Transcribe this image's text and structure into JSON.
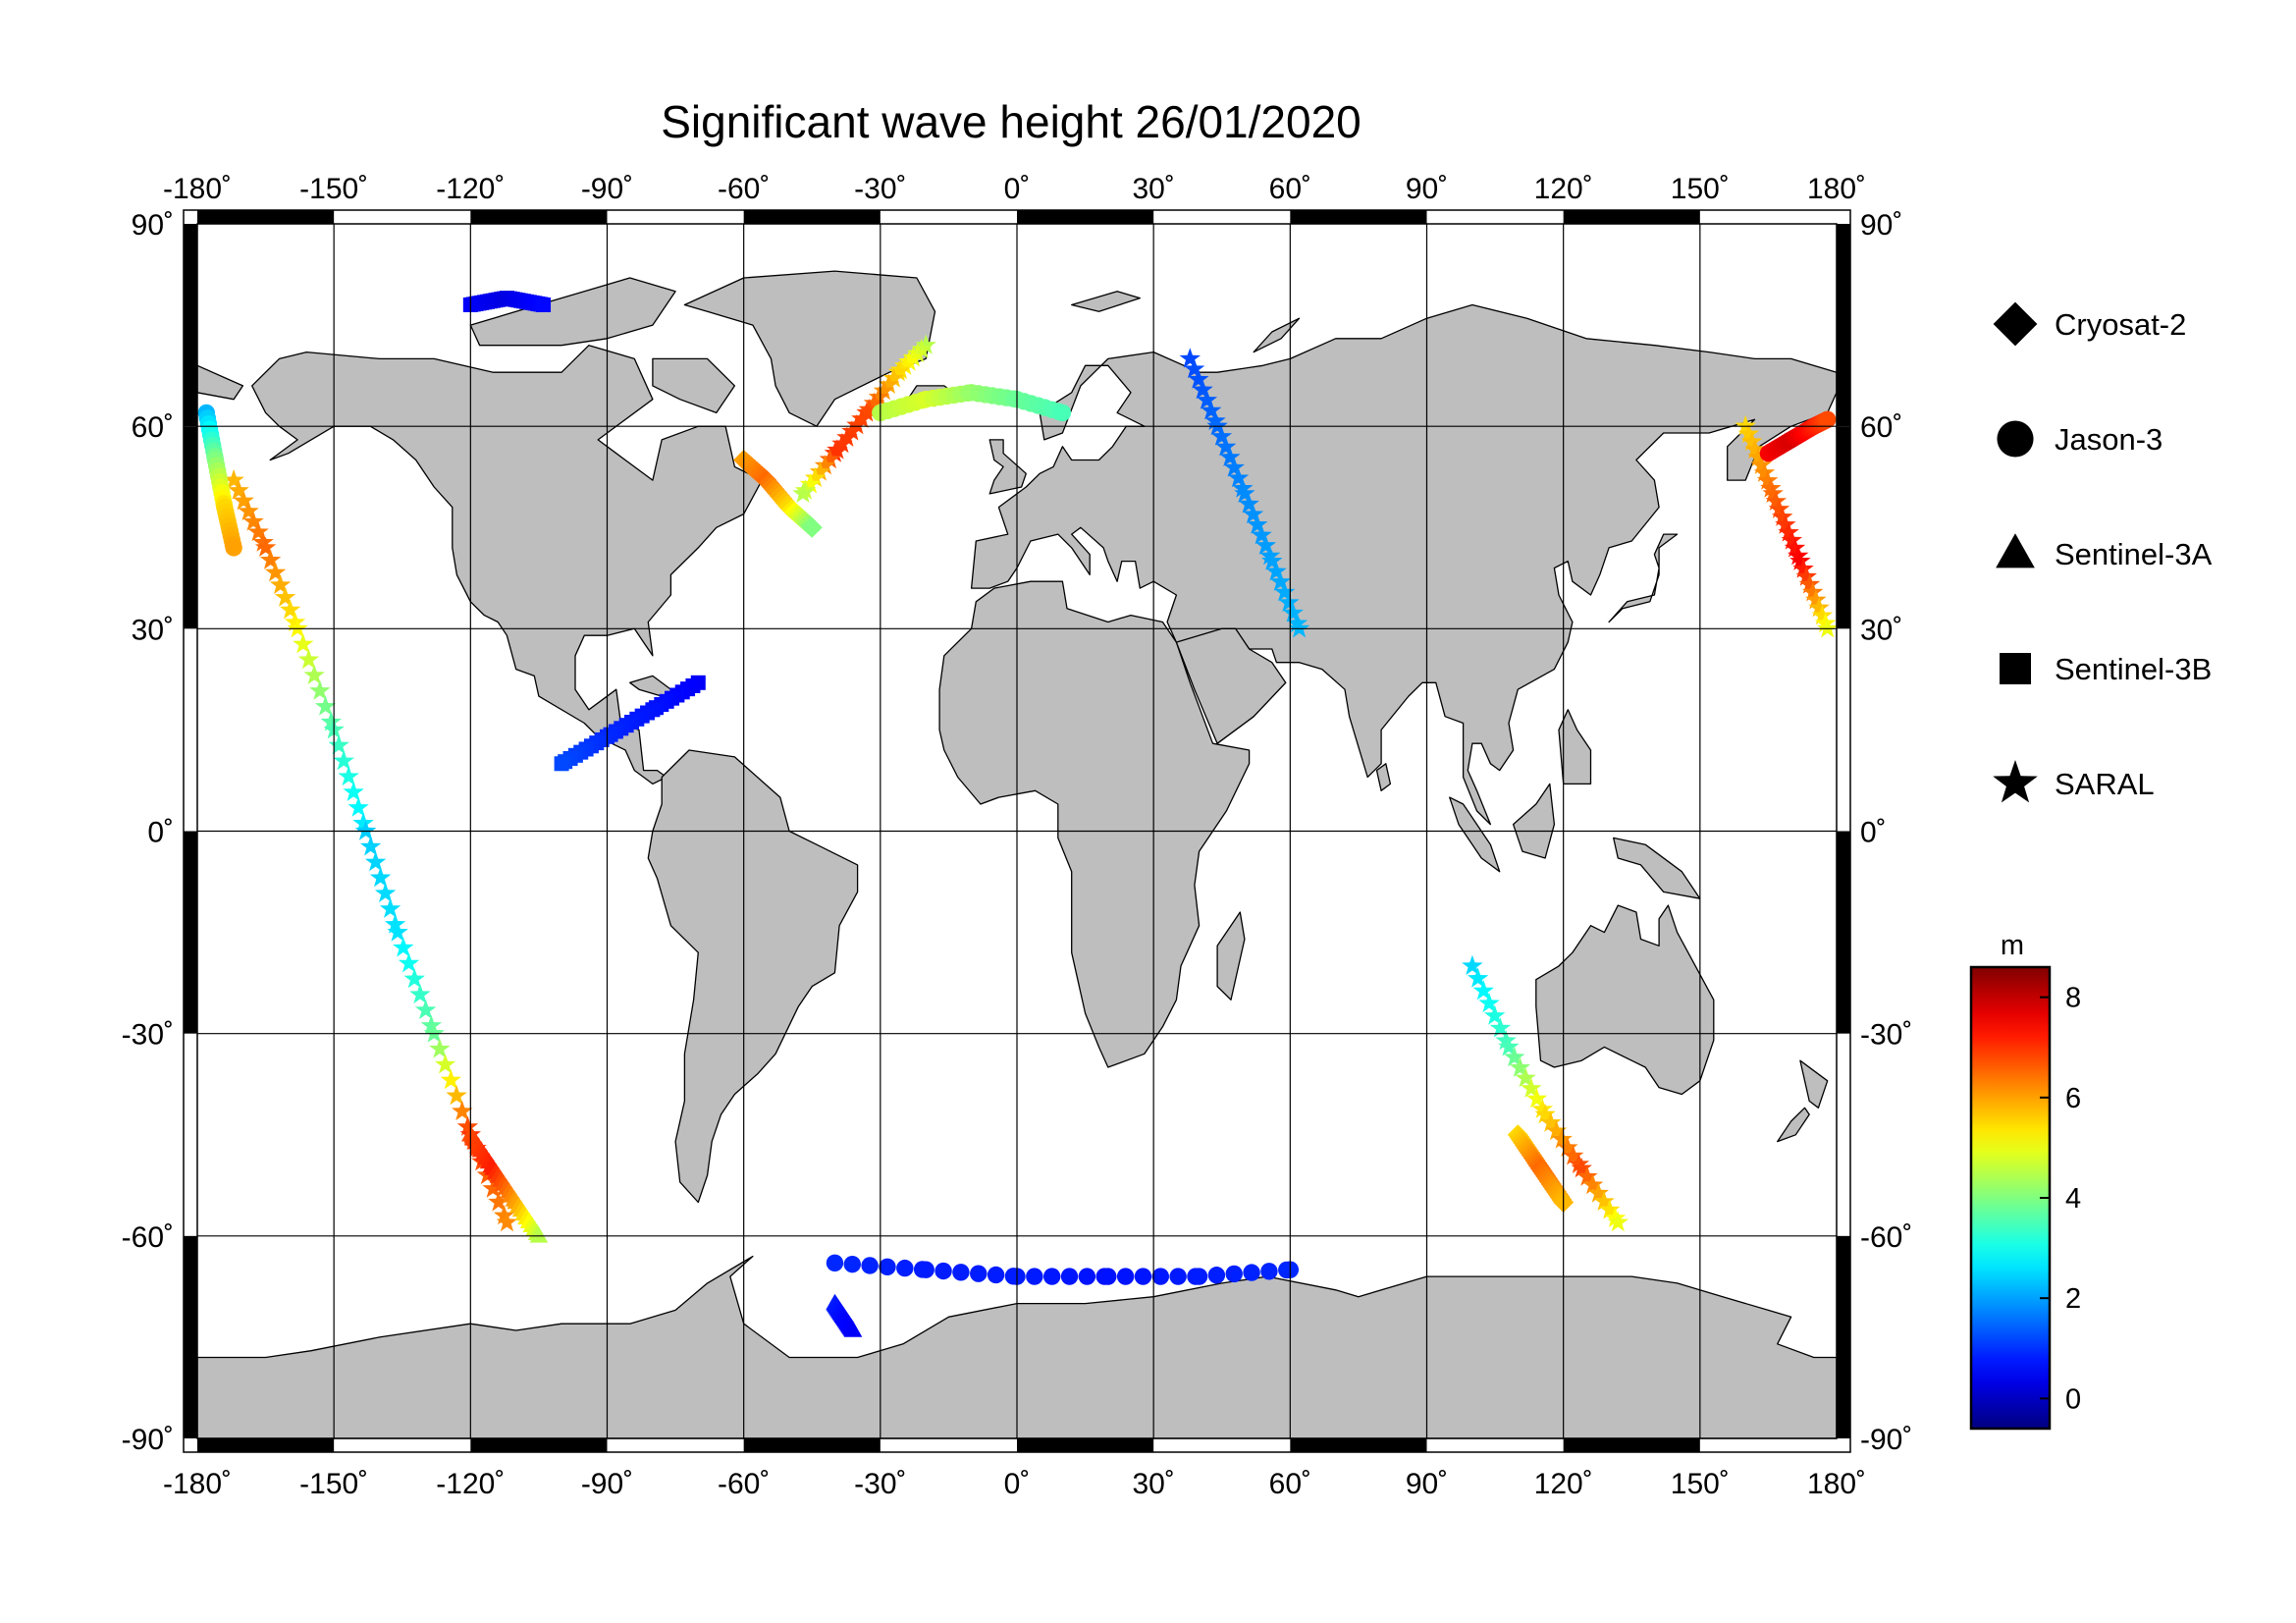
{
  "title": "Significant wave height 26/01/2020",
  "map": {
    "projection": "equirectangular",
    "lon_range": [
      -180,
      180
    ],
    "lat_range": [
      -90,
      90
    ],
    "gridlines": true,
    "lon_ticks": [
      "-180˚",
      "-150˚",
      "-120˚",
      "-90˚",
      "-60˚",
      "-30˚",
      "0˚",
      "30˚",
      "60˚",
      "90˚",
      "120˚",
      "150˚",
      "180˚"
    ],
    "lat_ticks": [
      "90˚",
      "60˚",
      "30˚",
      "0˚",
      "-30˚",
      "-60˚",
      "-90˚"
    ],
    "land_color": "#bebebe",
    "ocean_color": "#ffffff"
  },
  "legend": {
    "placement": "right",
    "items": [
      {
        "label": "Cryosat-2",
        "marker": "diamond"
      },
      {
        "label": "Jason-3",
        "marker": "circle"
      },
      {
        "label": "Sentinel-3A",
        "marker": "triangle"
      },
      {
        "label": "Sentinel-3B",
        "marker": "square"
      },
      {
        "label": "SARAL",
        "marker": "star"
      }
    ]
  },
  "colorbar": {
    "unit": "m",
    "range": [
      -0.6,
      8.6
    ],
    "tick_values": [
      0,
      2,
      4,
      6,
      8
    ],
    "tick_labels": [
      "0",
      "2",
      "4",
      "6",
      "8"
    ],
    "colormap": "jet"
  },
  "chart_data": {
    "type": "scatter",
    "title": "Significant wave height 26/01/2020",
    "x_axis": "longitude",
    "y_axis": "latitude",
    "xlim": [
      -180,
      180
    ],
    "ylim": [
      -90,
      90
    ],
    "color_variable": "significant wave height (m)",
    "series": [
      {
        "name": "SARAL",
        "marker": "star",
        "tracks": [
          {
            "lon": [
              -172,
              -165,
              -158,
              -150,
              -143
            ],
            "lat": [
              52,
              42,
              30,
              15,
              0
            ],
            "swh": [
              5.8,
              6.5,
              5.2,
              3.5,
              2.6
            ]
          },
          {
            "lon": [
              -143,
              -136,
              -128,
              -120,
              -112
            ],
            "lat": [
              0,
              -15,
              -30,
              -45,
              -58
            ],
            "swh": [
              2.4,
              2.6,
              3.8,
              7.0,
              6.2
            ]
          },
          {
            "lon": [
              -20,
              -26,
              -33,
              -40,
              -47
            ],
            "lat": [
              72,
              68,
              62,
              56,
              50
            ],
            "swh": [
              4.5,
              5.5,
              6.8,
              7.0,
              4.5
            ]
          },
          {
            "lon": [
              38,
              44,
              50,
              56,
              62
            ],
            "lat": [
              70,
              60,
              50,
              40,
              30
            ],
            "swh": [
              1.2,
              1.5,
              1.8,
              2.0,
              2.2
            ]
          },
          {
            "lon": [
              100,
              108,
              116,
              124,
              132
            ],
            "lat": [
              -20,
              -32,
              -42,
              -50,
              -58
            ],
            "swh": [
              2.5,
              3.5,
              5.5,
              6.8,
              5.0
            ]
          },
          {
            "lon": [
              160,
              166,
              172,
              178
            ],
            "lat": [
              60,
              50,
              40,
              30
            ],
            "swh": [
              5.5,
              6.5,
              7.5,
              5.0
            ]
          }
        ]
      },
      {
        "name": "Jason-3",
        "marker": "circle",
        "tracks": [
          {
            "lon": [
              -178,
              -176,
              -174,
              -172
            ],
            "lat": [
              62,
              55,
              48,
              42
            ],
            "swh": [
              2.2,
              4.0,
              5.5,
              6.0
            ]
          },
          {
            "lon": [
              -30,
              -20,
              -10,
              0,
              10
            ],
            "lat": [
              62,
              64,
              65,
              64,
              62
            ],
            "swh": [
              4.5,
              4.8,
              4.2,
              3.8,
              3.5
            ]
          },
          {
            "lon": [
              -40,
              -20,
              0,
              20,
              40,
              60
            ],
            "lat": [
              -64,
              -65,
              -66,
              -66,
              -66,
              -65
            ],
            "swh": [
              0.9,
              0.8,
              0.8,
              0.7,
              0.8,
              0.9
            ]
          },
          {
            "lon": [
              165,
              170,
              175,
              178
            ],
            "lat": [
              56,
              58,
              60,
              61
            ],
            "swh": [
              7.5,
              7.8,
              7.2,
              6.8
            ]
          }
        ]
      },
      {
        "name": "Sentinel-3A",
        "marker": "triangle",
        "tracks": [
          {
            "lon": [
              -120,
              -115,
              -110,
              -105
            ],
            "lat": [
              -45,
              -50,
              -55,
              -60
            ],
            "swh": [
              6.8,
              7.2,
              6.0,
              4.5
            ]
          },
          {
            "lon": [
              -40,
              -38,
              -36
            ],
            "lat": [
              -70,
              -72,
              -74
            ],
            "swh": [
              0.8,
              0.6,
              0.5
            ]
          }
        ]
      },
      {
        "name": "Sentinel-3B",
        "marker": "square",
        "tracks": [
          {
            "lon": [
              -120,
              -112,
              -104
            ],
            "lat": [
              78,
              79,
              78
            ],
            "swh": [
              0.5,
              0.3,
              0.6
            ]
          },
          {
            "lon": [
              -70,
              -80,
              -90,
              -100
            ],
            "lat": [
              22,
              18,
              14,
              10
            ],
            "swh": [
              0.5,
              0.7,
              0.9,
              1.2
            ]
          }
        ]
      },
      {
        "name": "Cryosat-2",
        "marker": "diamond",
        "tracks": [
          {
            "lon": [
              -60,
              -55,
              -50,
              -45
            ],
            "lat": [
              55,
              52,
              48,
              45
            ],
            "swh": [
              6.0,
              6.5,
              5.5,
              4.0
            ]
          },
          {
            "lon": [
              110,
              115,
              120
            ],
            "lat": [
              -45,
              -50,
              -55
            ],
            "swh": [
              5.5,
              6.5,
              5.8
            ]
          }
        ]
      }
    ]
  }
}
